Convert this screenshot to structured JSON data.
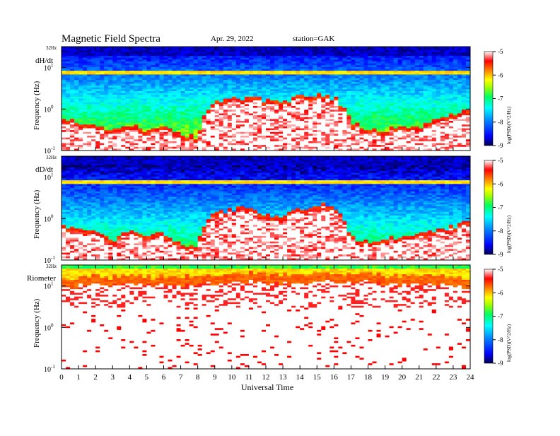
{
  "title": "Magnetic  Field  Spectra",
  "date": "Apr. 29, 2022",
  "station": "station=GAK",
  "x_axis_label": "Universal Time",
  "x_ticks": [
    "0",
    "1",
    "2",
    "3",
    "4",
    "5",
    "6",
    "7",
    "8",
    "9",
    "10",
    "11",
    "12",
    "13",
    "14",
    "15",
    "16",
    "17",
    "18",
    "19",
    "20",
    "21",
    "22",
    "23",
    "24"
  ],
  "panels": [
    {
      "label": "dH/dt",
      "ylabel": "Frequency  (Hz)",
      "top_tick": "32Hz",
      "cbar_label": "log(PSD)(V^2/Hz)"
    },
    {
      "label": "dD/dt",
      "ylabel": "Frequency  (Hz)",
      "top_tick": "32Hz",
      "cbar_label": "log(PSD)(V^2/Hz)"
    },
    {
      "label": "Riometer",
      "ylabel": "Frequency  (Hz)",
      "top_tick": "32Hz",
      "cbar_label": "log(PSD)(V^2/Hz)"
    }
  ],
  "y_ticks": [
    {
      "base": "10",
      "exp": "1"
    },
    {
      "base": "10",
      "exp": "0"
    },
    {
      "base": "10",
      "exp": "-1"
    }
  ],
  "colorbar_ticks": [
    "-5",
    "-6",
    "-7",
    "-8",
    "-9"
  ],
  "colors": {
    "colormap": [
      "#000060",
      "#0000ff",
      "#00a0ff",
      "#00ffff",
      "#00ff80",
      "#80ff00",
      "#ffff00",
      "#ff8000",
      "#ff0000",
      "#ffffff"
    ]
  },
  "chart_data": {
    "type": "heatmap",
    "title": "Magnetic  Field  Spectra",
    "xlabel": "Universal Time",
    "ylabel": "Frequency  (Hz)",
    "xlim": [
      0,
      24
    ],
    "ylim_hz": [
      0.1,
      32
    ],
    "y_scale": "log",
    "color_scale": "log(PSD)(V^2/Hz)",
    "clim": [
      -9,
      -5
    ],
    "series": [
      {
        "name": "dH/dt",
        "noise_floor_hz_by_hour": [
          0.45,
          0.4,
          0.3,
          0.25,
          0.3,
          0.25,
          0.3,
          0.2,
          0.15,
          1.2,
          1.4,
          1.5,
          1.3,
          1.2,
          1.6,
          1.8,
          1.5,
          0.4,
          0.25,
          0.25,
          0.3,
          0.3,
          0.4,
          0.6,
          0.9
        ]
      },
      {
        "name": "dD/dt",
        "noise_floor_hz_by_hour": [
          0.5,
          0.45,
          0.4,
          0.25,
          0.45,
          0.3,
          0.35,
          0.2,
          0.15,
          1.1,
          1.3,
          1.4,
          1.0,
          0.9,
          1.3,
          1.8,
          1.5,
          0.3,
          0.2,
          0.25,
          0.3,
          0.4,
          0.45,
          0.5,
          0.7
        ]
      },
      {
        "name": "Riometer",
        "noise_floor_hz_by_hour": [
          11,
          12,
          13,
          13,
          13,
          13,
          13,
          13,
          13,
          14,
          15,
          15,
          15,
          15,
          15,
          15,
          15,
          15,
          15,
          14,
          14,
          14,
          13,
          12,
          11
        ]
      }
    ]
  }
}
